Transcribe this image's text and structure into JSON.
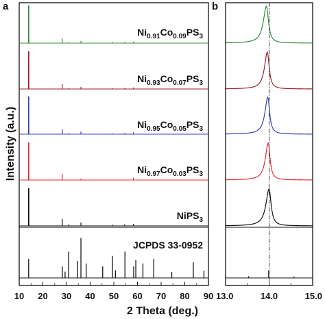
{
  "chart_data": [
    {
      "panel": "a",
      "type": "line",
      "xlabel": "2 Theta (deg.)",
      "ylabel": "Intensity (a.u.)",
      "xlim": [
        10,
        90
      ],
      "xticks": [
        "10",
        "20",
        "30",
        "40",
        "50",
        "60",
        "70",
        "80",
        "90"
      ],
      "grid": false,
      "series": [
        {
          "name": "Ni0.91Co0.09PS3",
          "label_parts": [
            [
              "Ni",
              false
            ],
            [
              "0.91",
              true
            ],
            [
              "Co",
              false
            ],
            [
              "0.09",
              true
            ],
            [
              "PS",
              false
            ],
            [
              "3",
              true
            ]
          ],
          "color": "#2e8b3a",
          "peaks": [
            [
              14.0,
              1.0
            ],
            [
              28.2,
              0.12
            ],
            [
              31.0,
              0.03
            ],
            [
              36.1,
              0.06
            ],
            [
              49.5,
              0.03
            ],
            [
              54.6,
              0.03
            ],
            [
              58.3,
              0.04
            ]
          ]
        },
        {
          "name": "Ni0.93Co0.07PS3",
          "label_parts": [
            [
              "Ni",
              false
            ],
            [
              "0.93",
              true
            ],
            [
              "Co",
              false
            ],
            [
              "0.07",
              true
            ],
            [
              "PS",
              false
            ],
            [
              "3",
              true
            ]
          ],
          "color": "#a01c26",
          "peaks": [
            [
              14.0,
              1.0
            ],
            [
              28.2,
              0.13
            ],
            [
              31.0,
              0.03
            ],
            [
              36.1,
              0.06
            ],
            [
              49.5,
              0.02
            ],
            [
              54.6,
              0.03
            ],
            [
              58.3,
              0.04
            ]
          ]
        },
        {
          "name": "Ni0.95Co0.05PS3",
          "label_parts": [
            [
              "Ni",
              false
            ],
            [
              "0.95",
              true
            ],
            [
              "Co",
              false
            ],
            [
              "0.05",
              true
            ],
            [
              "PS",
              false
            ],
            [
              "3",
              true
            ]
          ],
          "color": "#3040b8",
          "peaks": [
            [
              14.0,
              1.0
            ],
            [
              28.2,
              0.13
            ],
            [
              31.0,
              0.03
            ],
            [
              36.1,
              0.07
            ],
            [
              49.5,
              0.02
            ],
            [
              54.6,
              0.03
            ],
            [
              58.3,
              0.05
            ]
          ]
        },
        {
          "name": "Ni0.97Co0.03PS3",
          "label_parts": [
            [
              "Ni",
              false
            ],
            [
              "0.97",
              true
            ],
            [
              "Co",
              false
            ],
            [
              "0.03",
              true
            ],
            [
              "PS",
              false
            ],
            [
              "3",
              true
            ]
          ],
          "color": "#e0282e",
          "peaks": [
            [
              14.0,
              1.0
            ],
            [
              28.2,
              0.16
            ],
            [
              36.1,
              0.04
            ],
            [
              58.3,
              0.06
            ]
          ]
        },
        {
          "name": "NiPS3",
          "label_parts": [
            [
              "NiPS",
              false
            ],
            [
              "3",
              true
            ]
          ],
          "color": "#111111",
          "peaks": [
            [
              14.0,
              1.0
            ],
            [
              28.2,
              0.18
            ],
            [
              31.0,
              0.04
            ],
            [
              36.1,
              0.09
            ],
            [
              49.5,
              0.03
            ],
            [
              54.6,
              0.04
            ],
            [
              58.3,
              0.05
            ]
          ]
        }
      ],
      "reference": {
        "name": "JCPDS 33-0952",
        "color": "#111111",
        "lines": [
          [
            14.0,
            0.45
          ],
          [
            28.2,
            0.27
          ],
          [
            29.4,
            0.15
          ],
          [
            30.9,
            0.62
          ],
          [
            34.6,
            0.4
          ],
          [
            36.1,
            0.94
          ],
          [
            38.3,
            0.34
          ],
          [
            45.3,
            0.27
          ],
          [
            49.4,
            0.52
          ],
          [
            50.7,
            0.18
          ],
          [
            54.7,
            0.62
          ],
          [
            58.4,
            0.27
          ],
          [
            59.3,
            0.42
          ],
          [
            62.3,
            0.34
          ],
          [
            66.9,
            0.45
          ],
          [
            74.5,
            0.14
          ],
          [
            83.6,
            0.37
          ],
          [
            88.1,
            0.17
          ]
        ]
      }
    },
    {
      "panel": "b",
      "type": "line",
      "xlabel": "",
      "ylabel": "",
      "xlim": [
        13.0,
        15.0
      ],
      "xticks": [
        "13.0",
        "14.0",
        "15.0"
      ],
      "dashed_reference_line": 14.0,
      "grid": false,
      "series": [
        {
          "name": "Ni0.91Co0.09PS3",
          "color": "#2e8b3a",
          "peak_center": 13.94,
          "hwhm": 0.055
        },
        {
          "name": "Ni0.93Co0.07PS3",
          "color": "#a01c26",
          "peak_center": 13.96,
          "hwhm": 0.05
        },
        {
          "name": "Ni0.95Co0.05PS3",
          "color": "#3040b8",
          "peak_center": 13.97,
          "hwhm": 0.05
        },
        {
          "name": "Ni0.97Co0.03PS3",
          "color": "#e0282e",
          "peak_center": 13.98,
          "hwhm": 0.05
        },
        {
          "name": "NiPS3",
          "color": "#111111",
          "peak_center": 14.0,
          "hwhm": 0.055
        }
      ],
      "reference": {
        "name": "JCPDS 33-0952",
        "lines": [
          [
            13.53,
            0.12
          ],
          [
            13.99,
            0.55
          ],
          [
            14.57,
            0.1
          ]
        ]
      }
    }
  ]
}
